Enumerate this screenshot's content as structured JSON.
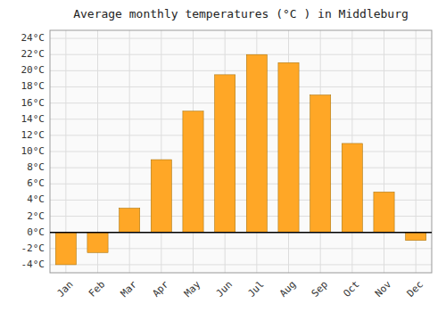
{
  "chart_data": {
    "type": "bar",
    "title": "Average monthly temperatures (°C ) in Middleburg",
    "categories": [
      "Jan",
      "Feb",
      "Mar",
      "Apr",
      "May",
      "Jun",
      "Jul",
      "Aug",
      "Sep",
      "Oct",
      "Nov",
      "Dec"
    ],
    "values": [
      -4.0,
      -2.5,
      3.0,
      9.0,
      15.0,
      19.5,
      22.0,
      21.0,
      17.0,
      11.0,
      5.0,
      -1.0
    ],
    "color": "#FFA726",
    "ylim": [
      -5,
      25
    ],
    "yticks": [
      {
        "value": -4,
        "label": "-4°C"
      },
      {
        "value": -2,
        "label": "-2°C"
      },
      {
        "value": 0,
        "label": "0°C"
      },
      {
        "value": 2,
        "label": "2°C"
      },
      {
        "value": 4,
        "label": "4°C"
      },
      {
        "value": 6,
        "label": "6°C"
      },
      {
        "value": 8,
        "label": "8°C"
      },
      {
        "value": 10,
        "label": "10°C"
      },
      {
        "value": 12,
        "label": "12°C"
      },
      {
        "value": 14,
        "label": "14°C"
      },
      {
        "value": 16,
        "label": "16°C"
      },
      {
        "value": 18,
        "label": "18°C"
      },
      {
        "value": 20,
        "label": "20°C"
      },
      {
        "value": 22,
        "label": "22°C"
      },
      {
        "value": 24,
        "label": "24°C"
      }
    ],
    "grid": true
  }
}
